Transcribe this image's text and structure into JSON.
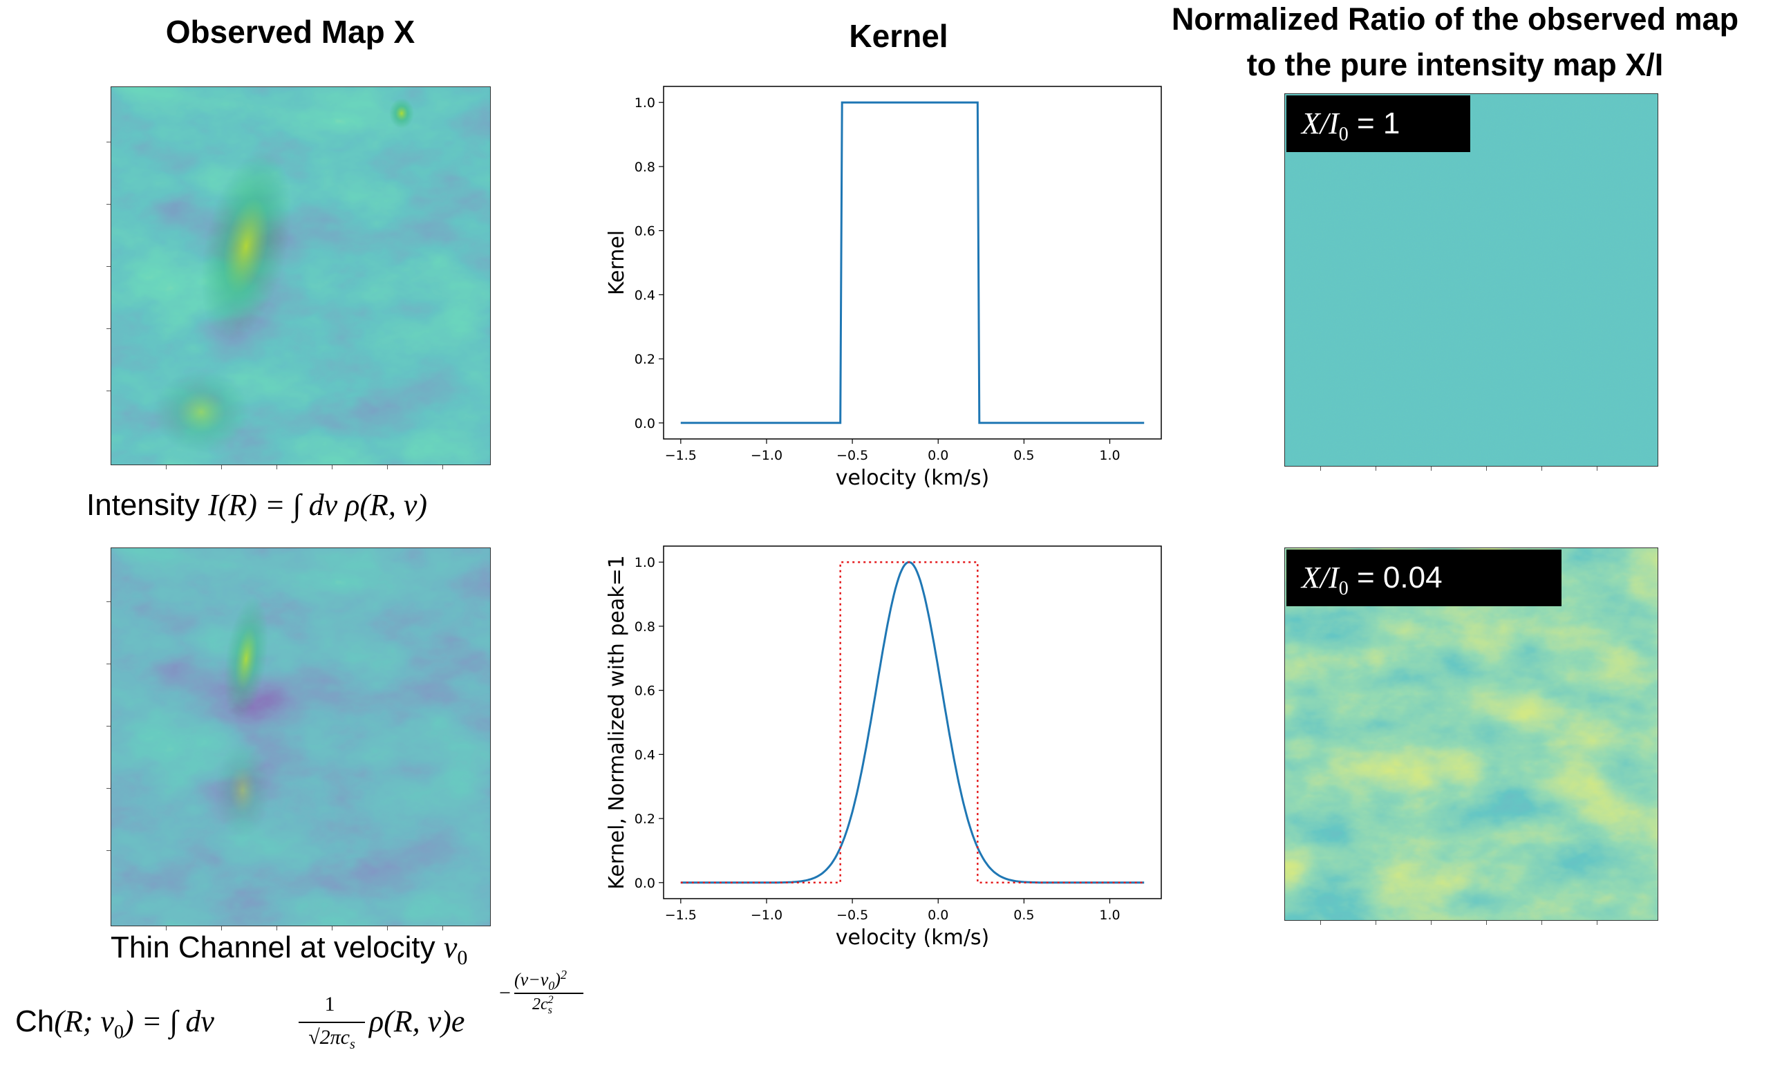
{
  "columns": {
    "left_title": "Observed Map X",
    "middle_title": "Kernel",
    "right_title_line1": "Normalized Ratio of the observed map",
    "right_title_line2": "to the pure intensity map X/I"
  },
  "left_panel": {
    "intensity_caption": {
      "prefix": "Intensity ",
      "formula": "I(R) = ∫ dv ρ(R, v)"
    },
    "channel_caption": {
      "prefix": "Thin Channel at velocity ",
      "symbol": "v",
      "subscript": "0"
    },
    "channel_formula": {
      "lhs_ch": "Ch",
      "lhs_rest": "(R; v",
      "lhs_sub": "0",
      "lhs_close": ") = ∫ dv",
      "frac_num": "1",
      "frac_den": "√2πc",
      "frac_den_sub": "s",
      "body": "ρ(R, v)e",
      "exp_num": "(v−v",
      "exp_num_sub": "0",
      "exp_num_close": ")",
      "exp_num_sup": "2",
      "exp_den": "2c",
      "exp_den_sub": "s",
      "exp_den_sup": "2",
      "exp_minus": "−"
    }
  },
  "right_panel": {
    "top_label": {
      "math": "X/I",
      "sub": "0",
      "value": " = 1"
    },
    "bottom_label": {
      "math": "X/I",
      "sub": "0",
      "value": " = 0.04"
    }
  },
  "colors": {
    "viridis_dark": "#3b0f70",
    "viridis_mid": "#21918c",
    "viridis_yellow": "#fde725",
    "line_blue": "#1f77b4",
    "line_red": "#e41a1c"
  },
  "chart_data": [
    {
      "type": "line",
      "title": "",
      "xlabel": "velocity (km/s)",
      "ylabel": "Kernel",
      "xlim": [
        -1.6,
        1.3
      ],
      "ylim": [
        -0.05,
        1.05
      ],
      "xticks": [
        -1.5,
        -1.0,
        -0.5,
        0.0,
        0.5,
        1.0
      ],
      "xtick_labels": [
        "−1.5",
        "−1.0",
        "−0.5",
        "0.0",
        "0.5",
        "1.0"
      ],
      "yticks": [
        0.0,
        0.2,
        0.4,
        0.6,
        0.8,
        1.0
      ],
      "ytick_labels": [
        "0.0",
        "0.2",
        "0.4",
        "0.6",
        "0.8",
        "1.0"
      ],
      "series": [
        {
          "name": "box kernel",
          "style": "solid",
          "color": "#1f77b4",
          "x": [
            -1.5,
            -0.57,
            -0.56,
            0.23,
            0.24,
            1.2
          ],
          "y": [
            0.0,
            0.0,
            1.0,
            1.0,
            0.0,
            0.0
          ]
        }
      ]
    },
    {
      "type": "line",
      "title": "",
      "xlabel": "velocity (km/s)",
      "ylabel": "Kernel, Normalized with peak=1",
      "xlim": [
        -1.6,
        1.3
      ],
      "ylim": [
        -0.05,
        1.05
      ],
      "xticks": [
        -1.5,
        -1.0,
        -0.5,
        0.0,
        0.5,
        1.0
      ],
      "xtick_labels": [
        "−1.5",
        "−1.0",
        "−0.5",
        "0.0",
        "0.5",
        "1.0"
      ],
      "yticks": [
        0.0,
        0.2,
        0.4,
        0.6,
        0.8,
        1.0
      ],
      "ytick_labels": [
        "0.0",
        "0.2",
        "0.4",
        "0.6",
        "0.8",
        "1.0"
      ],
      "series": [
        {
          "name": "gaussian kernel",
          "style": "solid",
          "color": "#1f77b4",
          "gaussian": {
            "center": -0.17,
            "sigma": 0.19
          },
          "x_range": [
            -1.5,
            1.2
          ]
        },
        {
          "name": "box kernel",
          "style": "dotted",
          "color": "#e41a1c",
          "x": [
            -1.5,
            -0.57,
            -0.57,
            0.23,
            0.23,
            1.2
          ],
          "y": [
            0.0,
            0.0,
            1.0,
            1.0,
            0.0,
            0.0
          ]
        }
      ]
    }
  ]
}
